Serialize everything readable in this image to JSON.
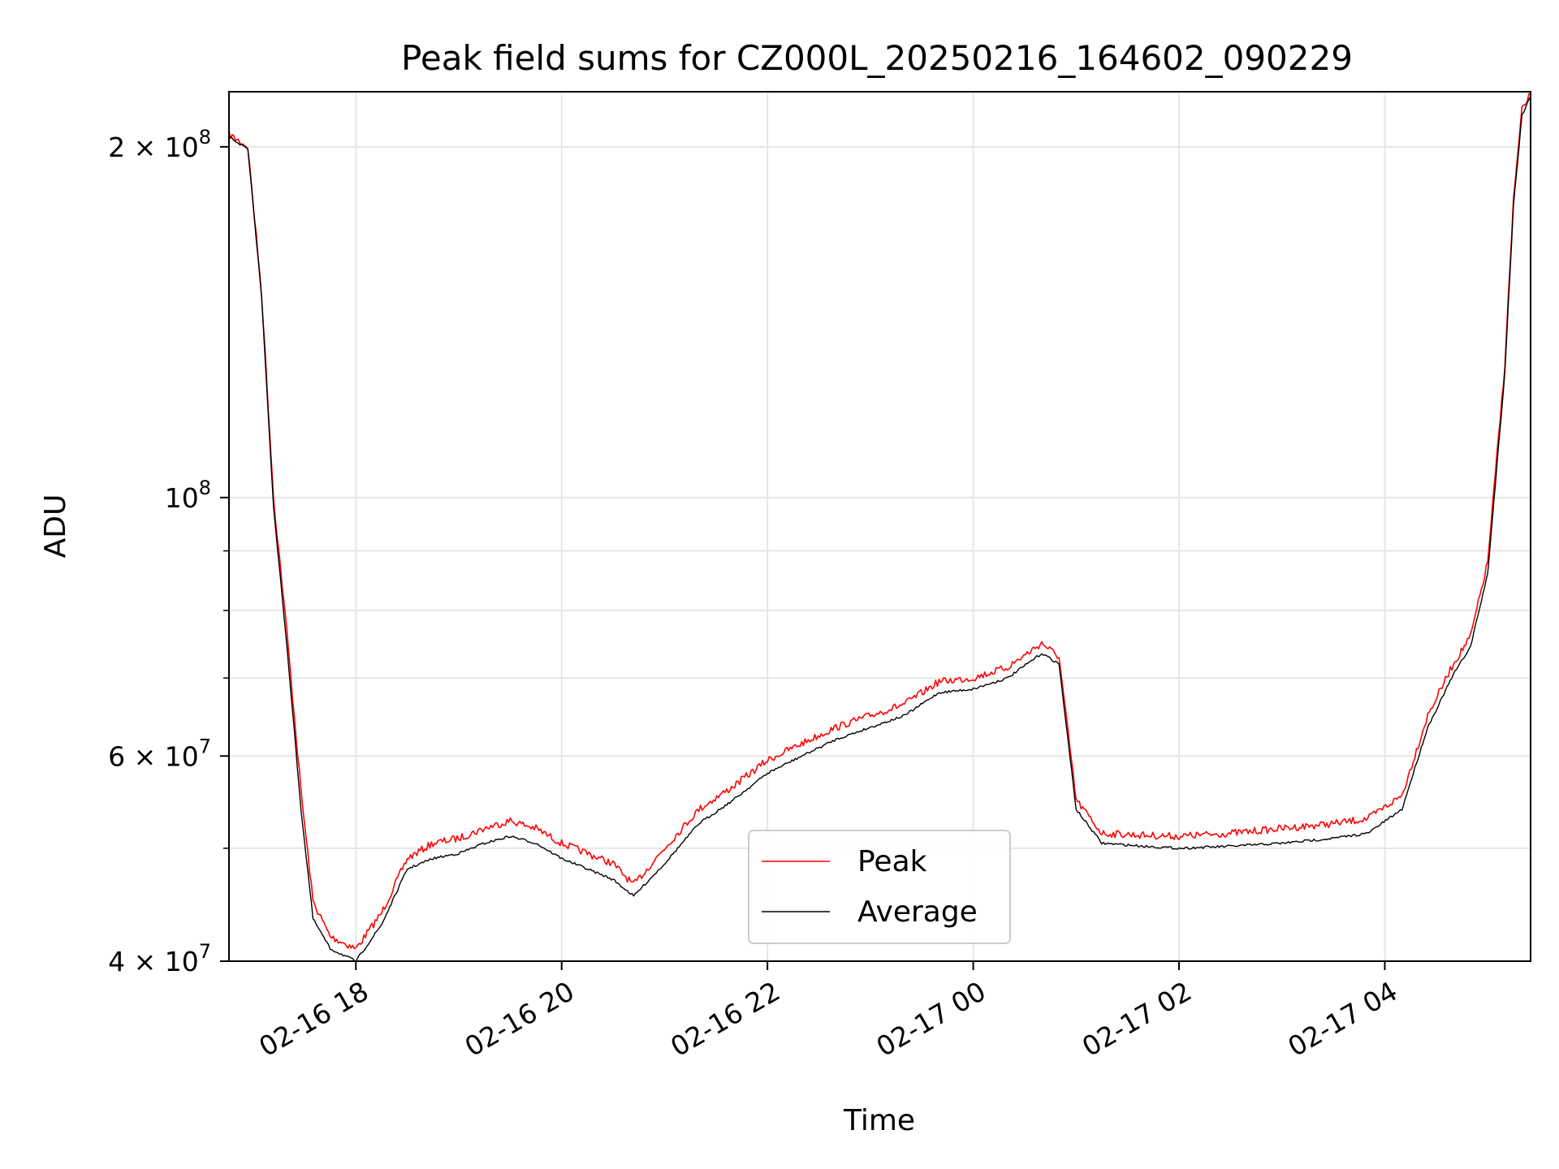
{
  "chart_data": {
    "type": "line",
    "title": "Peak field sums for CZ000L_20250216_164602_090229",
    "xlabel": "Time",
    "ylabel": "ADU",
    "yscale": "log",
    "ylim": [
      40000000,
      223000000
    ],
    "xlim": [
      "02-16 16:46",
      "02-17 05:25"
    ],
    "grid": true,
    "legend_position": "bottom-center",
    "x_ticks": [
      "02-16 18",
      "02-16 20",
      "02-16 22",
      "02-17 00",
      "02-17 02",
      "02-17 04"
    ],
    "y_ticks": [
      {
        "value": 40000000,
        "mantissa": "4",
        "exponent": "7"
      },
      {
        "value": 60000000,
        "mantissa": "6",
        "exponent": "7"
      },
      {
        "value": 100000000,
        "mantissa": "",
        "exponent": "8"
      },
      {
        "value": 200000000,
        "mantissa": "2",
        "exponent": "8"
      }
    ],
    "y_minor_ticks": [
      50000000,
      70000000,
      80000000,
      90000000
    ],
    "series": [
      {
        "name": "Peak",
        "color": "#ff0000",
        "x": [
          "02-16 16:46",
          "02-16 16:57",
          "02-16 17:05",
          "02-16 17:12",
          "02-16 17:20",
          "02-16 17:28",
          "02-16 17:35",
          "02-16 17:45",
          "02-16 18:00",
          "02-16 18:15",
          "02-16 18:30",
          "02-16 18:45",
          "02-16 19:00",
          "02-16 19:15",
          "02-16 19:30",
          "02-16 19:45",
          "02-16 20:00",
          "02-16 20:15",
          "02-16 20:30",
          "02-16 20:42",
          "02-16 21:00",
          "02-16 21:20",
          "02-16 21:40",
          "02-16 22:00",
          "02-16 22:20",
          "02-16 22:40",
          "02-16 23:00",
          "02-16 23:20",
          "02-16 23:40",
          "02-17 00:00",
          "02-17 00:20",
          "02-17 00:40",
          "02-17 00:50",
          "02-17 01:00",
          "02-17 01:15",
          "02-17 01:40",
          "02-17 02:00",
          "02-17 02:30",
          "02-17 03:00",
          "02-17 03:30",
          "02-17 03:50",
          "02-17 04:10",
          "02-17 04:25",
          "02-17 04:40",
          "02-17 04:50",
          "02-17 05:00",
          "02-17 05:10",
          "02-17 05:15",
          "02-17 05:20",
          "02-17 05:25"
        ],
        "values": [
          205000000,
          200000000,
          150000000,
          100000000,
          76000000,
          56000000,
          45000000,
          42000000,
          41000000,
          44000000,
          49000000,
          50500000,
          51000000,
          52000000,
          52800000,
          52000000,
          50500000,
          49500000,
          48500000,
          46500000,
          50000000,
          54000000,
          56500000,
          59500000,
          61500000,
          63500000,
          65000000,
          66500000,
          69500000,
          70000000,
          71500000,
          75000000,
          73000000,
          55000000,
          51500000,
          51300000,
          51200000,
          51500000,
          52000000,
          52500000,
          53000000,
          55500000,
          65000000,
          72000000,
          76000000,
          88000000,
          130000000,
          180000000,
          215000000,
          222000000
        ]
      },
      {
        "name": "Average",
        "color": "#000000",
        "x": [
          "02-16 16:46",
          "02-16 16:57",
          "02-16 17:05",
          "02-16 17:12",
          "02-16 17:20",
          "02-16 17:28",
          "02-16 17:35",
          "02-16 17:45",
          "02-16 18:00",
          "02-16 18:15",
          "02-16 18:30",
          "02-16 18:45",
          "02-16 19:00",
          "02-16 19:15",
          "02-16 19:30",
          "02-16 19:45",
          "02-16 20:00",
          "02-16 20:15",
          "02-16 20:30",
          "02-16 20:42",
          "02-16 21:00",
          "02-16 21:20",
          "02-16 21:40",
          "02-16 22:00",
          "02-16 22:20",
          "02-16 22:40",
          "02-16 23:00",
          "02-16 23:20",
          "02-16 23:40",
          "02-17 00:00",
          "02-17 00:20",
          "02-17 00:40",
          "02-17 00:50",
          "02-17 01:00",
          "02-17 01:15",
          "02-17 01:40",
          "02-17 02:00",
          "02-17 02:30",
          "02-17 03:00",
          "02-17 03:30",
          "02-17 03:50",
          "02-17 04:10",
          "02-17 04:25",
          "02-17 04:40",
          "02-17 04:50",
          "02-17 05:00",
          "02-17 05:10",
          "02-17 05:15",
          "02-17 05:20",
          "02-17 05:25"
        ],
        "values": [
          204000000,
          199000000,
          149000000,
          98000000,
          74000000,
          54000000,
          43500000,
          41000000,
          40000000,
          43000000,
          48000000,
          49000000,
          49500000,
          50500000,
          51200000,
          50500000,
          49000000,
          48000000,
          47000000,
          45500000,
          48500000,
          52500000,
          55000000,
          58000000,
          60000000,
          62000000,
          63500000,
          65000000,
          68000000,
          68500000,
          70000000,
          73500000,
          72000000,
          54000000,
          50500000,
          50200000,
          50000000,
          50200000,
          50500000,
          51000000,
          51500000,
          54000000,
          63500000,
          70500000,
          74500000,
          86000000,
          128000000,
          178000000,
          213000000,
          221000000
        ]
      }
    ]
  }
}
